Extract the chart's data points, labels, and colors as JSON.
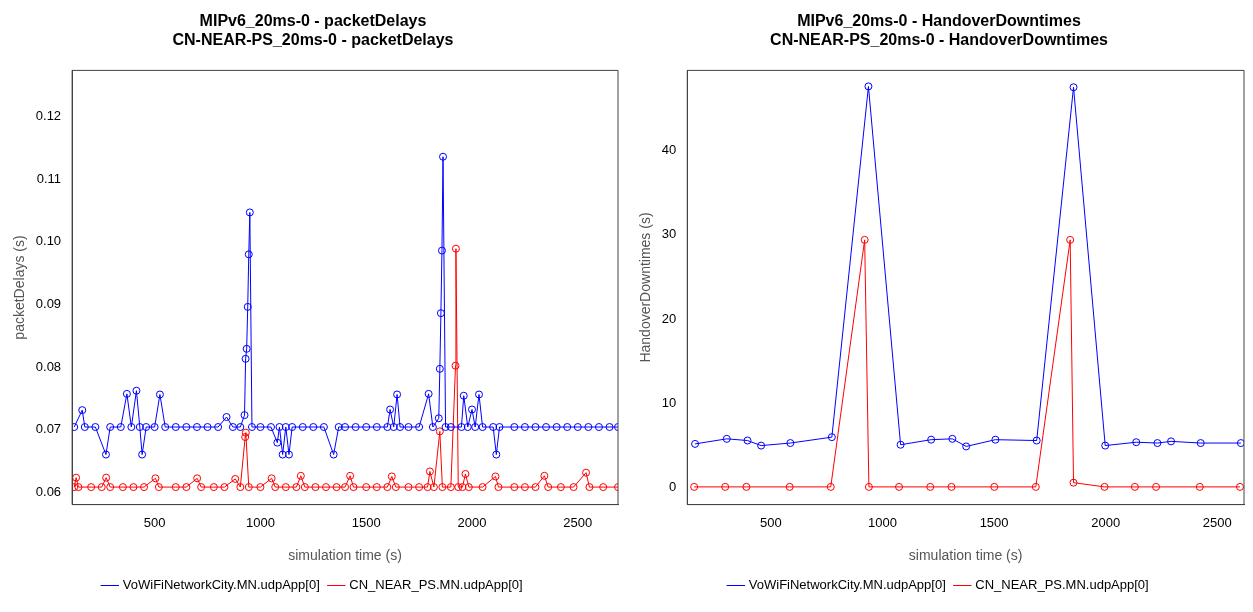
{
  "chart_data": [
    {
      "type": "line",
      "title": "MIPv6_20ms-0 - packetDelays",
      "subtitle": "CN-NEAR-PS_20ms-0 - packetDelays",
      "xlabel": "simulation time (s)",
      "ylabel": "packetDelays (s)",
      "xlim": [
        110,
        2690
      ],
      "ylim": [
        0.058,
        0.1274
      ],
      "xticks": [
        500,
        1000,
        1500,
        2000,
        2500
      ],
      "yticks": [
        0.06,
        0.07,
        0.08,
        0.09,
        {
          "value": 0.1,
          "label": "0.10"
        },
        0.11,
        0.12
      ],
      "grid": false,
      "legend": "bottom",
      "marker": "circle",
      "line_style": "solid",
      "series": [
        {
          "name": "VoWiFiNetworkCity.MN.udpApp[0]",
          "color": "#0000ff",
          "x": [
            120,
            158,
            170,
            220,
            270,
            290,
            340,
            369,
            390,
            414,
            430,
            441,
            460,
            500,
            525,
            550,
            600,
            650,
            700,
            750,
            800,
            840,
            870,
            905,
            925,
            930,
            935,
            940,
            945,
            950,
            960,
            1000,
            1050,
            1080,
            1090,
            1105,
            1120,
            1135,
            1150,
            1200,
            1250,
            1300,
            1346,
            1370,
            1400,
            1450,
            1500,
            1550,
            1600,
            1613,
            1630,
            1646,
            1660,
            1700,
            1750,
            1795,
            1815,
            1843,
            1848,
            1853,
            1858,
            1863,
            1875,
            1900,
            1950,
            1961,
            1980,
            2000,
            2015,
            2033,
            2050,
            2100,
            2115,
            2130,
            2200,
            2250,
            2300,
            2350,
            2400,
            2450,
            2500,
            2550,
            2600,
            2650,
            2690
          ],
          "values": [
            0.0704,
            0.0731,
            0.0704,
            0.0704,
            0.066,
            0.0704,
            0.0704,
            0.0757,
            0.0704,
            0.0762,
            0.0704,
            0.066,
            0.0704,
            0.0704,
            0.0756,
            0.0704,
            0.0704,
            0.0704,
            0.0704,
            0.0704,
            0.0704,
            0.072,
            0.0704,
            0.0704,
            0.0723,
            0.0813,
            0.0829,
            0.0896,
            0.098,
            0.1047,
            0.0704,
            0.0704,
            0.0704,
            0.0679,
            0.0704,
            0.066,
            0.0704,
            0.066,
            0.0704,
            0.0704,
            0.0704,
            0.0704,
            0.066,
            0.0704,
            0.0704,
            0.0704,
            0.0704,
            0.0704,
            0.0704,
            0.0732,
            0.0704,
            0.0756,
            0.0704,
            0.0704,
            0.0704,
            0.0757,
            0.0704,
            0.0718,
            0.0797,
            0.0886,
            0.0986,
            0.1136,
            0.0704,
            0.0704,
            0.0704,
            0.0754,
            0.0704,
            0.0732,
            0.0704,
            0.0756,
            0.0704,
            0.0704,
            0.066,
            0.0704,
            0.0704,
            0.0704,
            0.0704,
            0.0704,
            0.0704,
            0.0704,
            0.0704,
            0.0704,
            0.0704,
            0.0704,
            0.0704
          ]
        },
        {
          "name": "CN_NEAR_PS.MN.udpApp[0]",
          "color": "#ff0000",
          "x": [
            120,
            129,
            140,
            200,
            250,
            271,
            290,
            350,
            400,
            450,
            504,
            520,
            600,
            650,
            701,
            720,
            780,
            830,
            881,
            905,
            928,
            931,
            945,
            1000,
            1053,
            1070,
            1120,
            1170,
            1191,
            1210,
            1260,
            1310,
            1360,
            1400,
            1424,
            1440,
            1500,
            1550,
            1600,
            1621,
            1640,
            1700,
            1750,
            1790,
            1801,
            1820,
            1848,
            1860,
            1900,
            1922,
            1924,
            1935,
            1955,
            1969,
            1985,
            2050,
            2111,
            2125,
            2200,
            2250,
            2300,
            2342,
            2360,
            2420,
            2480,
            2539,
            2555,
            2620,
            2690
          ],
          "values": [
            0.0608,
            0.0623,
            0.0608,
            0.0608,
            0.0608,
            0.0623,
            0.0608,
            0.0608,
            0.0608,
            0.0608,
            0.0622,
            0.0608,
            0.0608,
            0.0608,
            0.0622,
            0.0608,
            0.0608,
            0.0608,
            0.0621,
            0.0608,
            0.0688,
            0.0695,
            0.0608,
            0.0608,
            0.0622,
            0.0608,
            0.0608,
            0.0608,
            0.0626,
            0.0608,
            0.0608,
            0.0608,
            0.0608,
            0.0608,
            0.0626,
            0.0608,
            0.0608,
            0.0608,
            0.0608,
            0.0625,
            0.0608,
            0.0608,
            0.0608,
            0.0608,
            0.0633,
            0.0608,
            0.0697,
            0.0608,
            0.0608,
            0.0802,
            0.0989,
            0.0608,
            0.0608,
            0.0629,
            0.0608,
            0.0608,
            0.0625,
            0.0608,
            0.0608,
            0.0608,
            0.0608,
            0.0626,
            0.0608,
            0.0608,
            0.0608,
            0.0631,
            0.0608,
            0.0608,
            0.0608
          ]
        }
      ]
    },
    {
      "type": "line",
      "title": "MIPv6_20ms-0 - HandoverDowntimes",
      "subtitle": "CN-NEAR-PS_20ms-0 - HandoverDowntimes",
      "xlabel": "simulation time (s)",
      "ylabel": "HandoverDowntimes (s)",
      "xlim": [
        125,
        2620
      ],
      "ylim": [
        -2,
        49.5
      ],
      "xticks": [
        500,
        1000,
        1500,
        2000,
        2500
      ],
      "yticks": [
        0,
        10,
        20,
        30,
        40
      ],
      "grid": false,
      "legend": "bottom",
      "marker": "circle",
      "line_style": "solid",
      "series": [
        {
          "name": "VoWiFiNetworkCity.MN.udpApp[0]",
          "color": "#0000ff",
          "x": [
            160,
            302,
            395,
            456,
            587,
            773,
            937,
            1081,
            1218,
            1313,
            1375,
            1506,
            1691,
            1856,
            1998,
            2137,
            2232,
            2293,
            2426,
            2606
          ],
          "values": [
            5.2,
            5.8,
            5.6,
            5.0,
            5.3,
            6.0,
            47.6,
            5.1,
            5.7,
            5.8,
            4.9,
            5.7,
            5.6,
            47.5,
            5.0,
            5.4,
            5.3,
            5.5,
            5.3,
            5.3
          ]
        },
        {
          "name": "CN_NEAR_PS.MN.udpApp[0]",
          "color": "#ff0000",
          "x": [
            156,
            295,
            390,
            584,
            768,
            920,
            939,
            1074,
            1214,
            1309,
            1501,
            1687,
            1841,
            1856,
            1995,
            2131,
            2226,
            2422,
            2602
          ],
          "values": [
            0.1,
            0.1,
            0.1,
            0.1,
            0.1,
            29.4,
            0.1,
            0.1,
            0.1,
            0.1,
            0.1,
            0.1,
            29.4,
            0.6,
            0.1,
            0.1,
            0.1,
            0.1,
            0.1
          ]
        }
      ]
    }
  ]
}
